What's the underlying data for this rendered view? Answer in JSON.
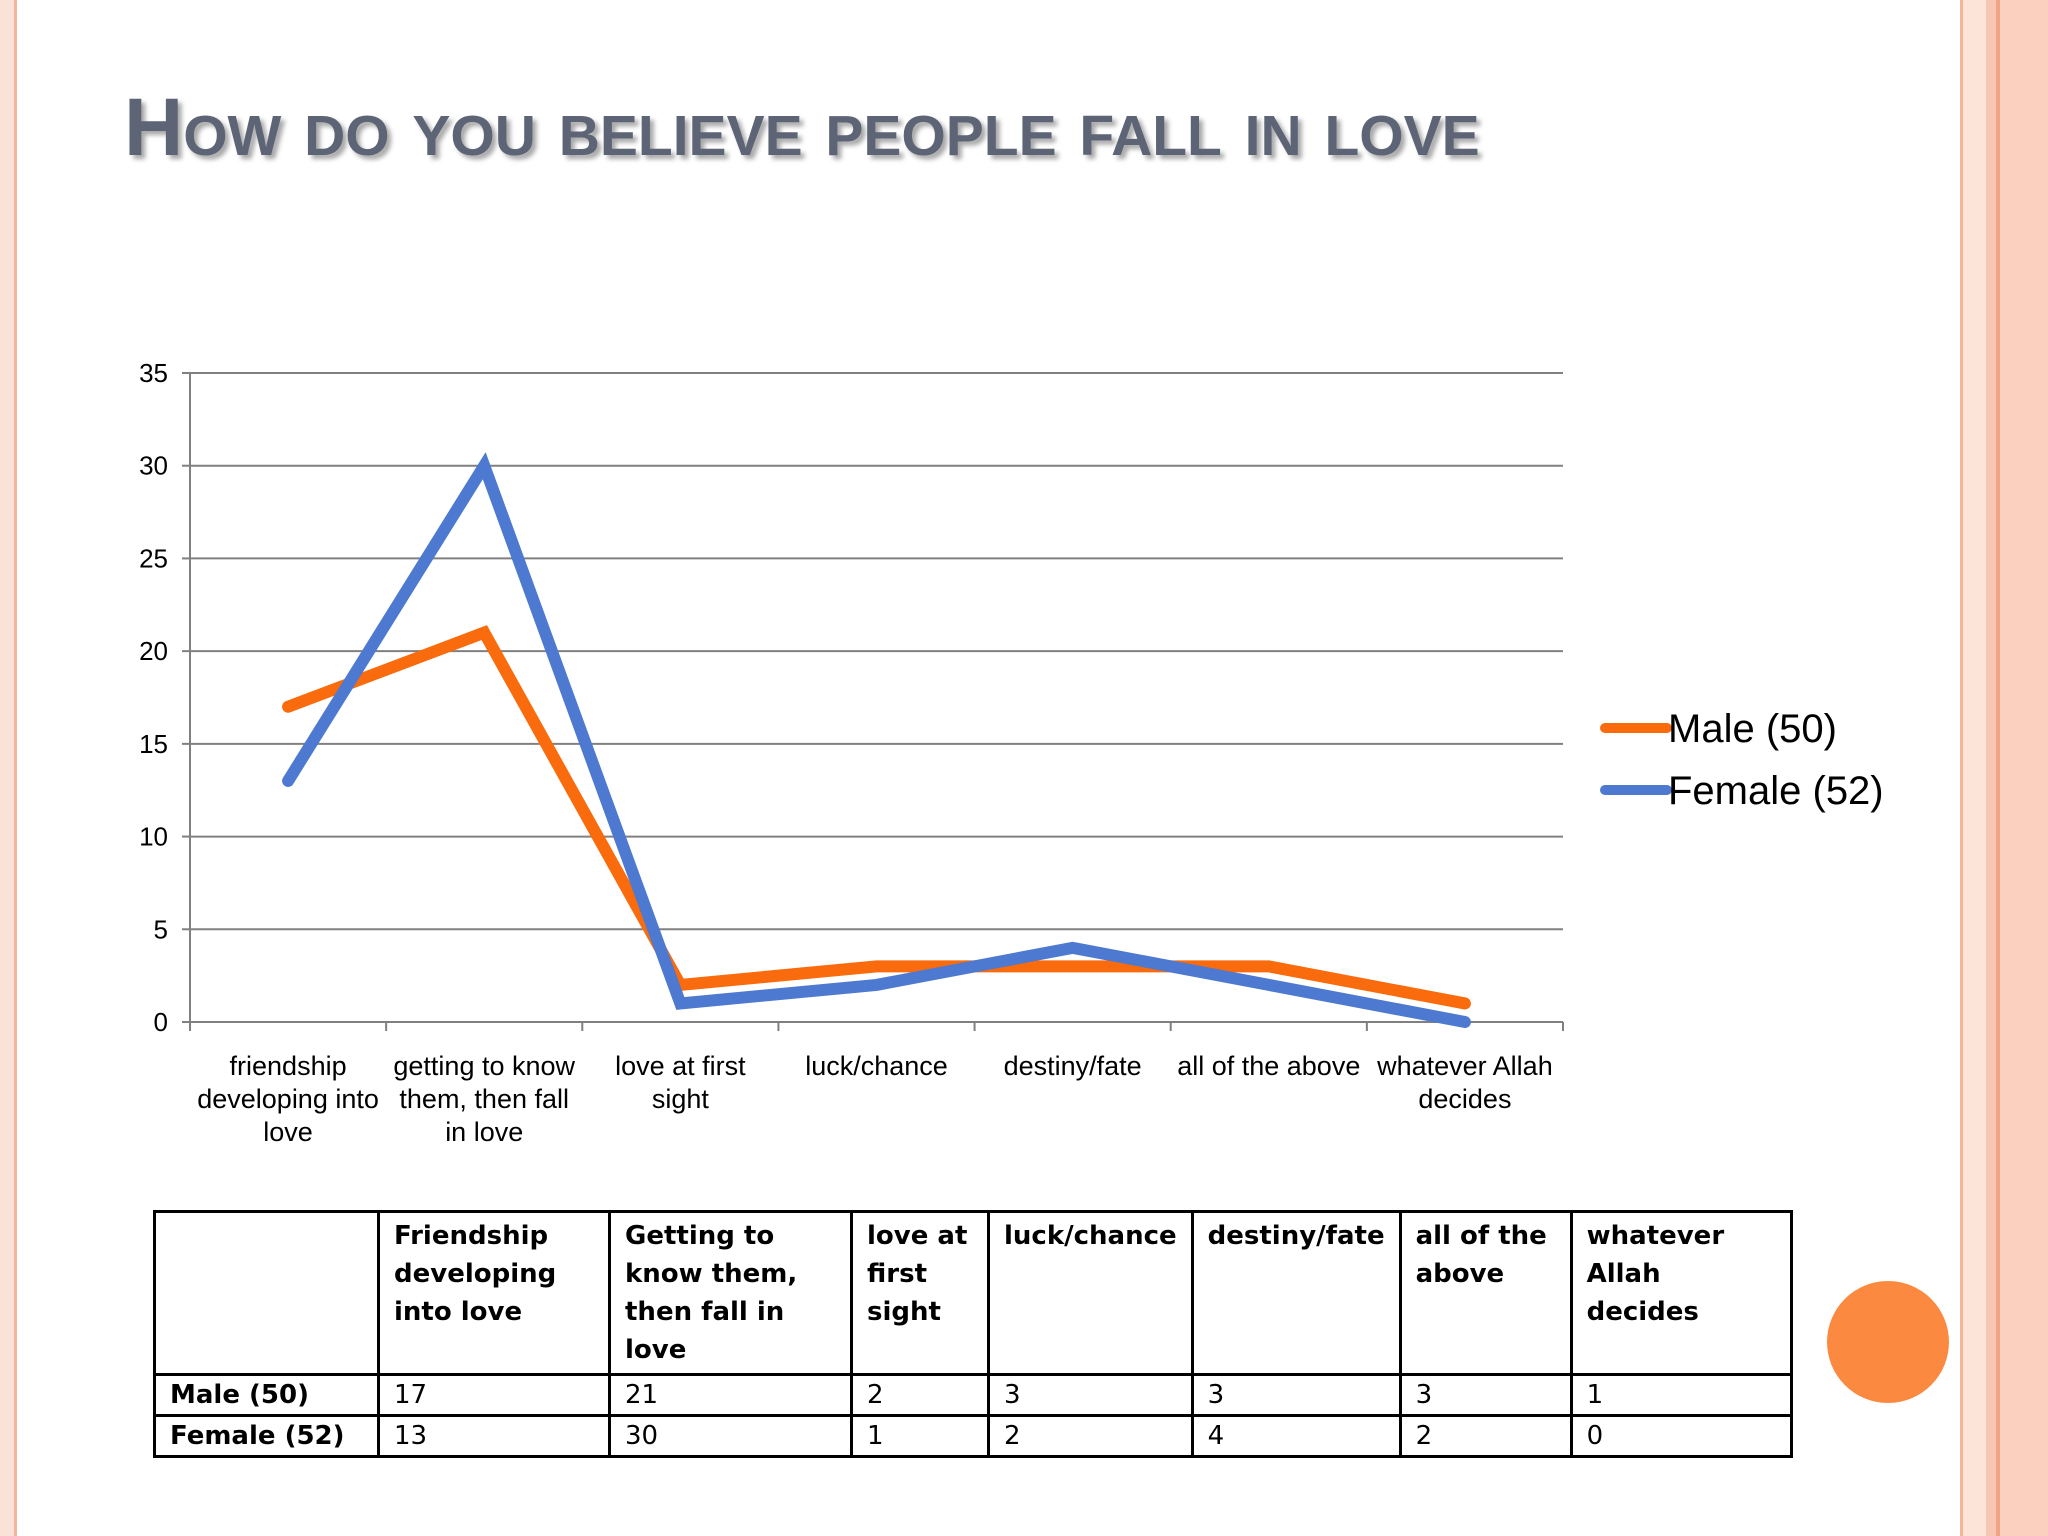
{
  "slide": {
    "title": "How do you believe people fall in love",
    "colors": {
      "accent_circle": "#fb8a40",
      "title": "#5d6475"
    }
  },
  "chart_data": {
    "type": "line",
    "categories": [
      "friendship developing into love",
      "getting to know them, then fall in love",
      "love at first sight",
      "luck/chance",
      "destiny/fate",
      "all of the above",
      "whatever Allah decides"
    ],
    "series": [
      {
        "name": "Male (50)",
        "color": "#f96b0c",
        "values": [
          17,
          21,
          2,
          3,
          3,
          3,
          1
        ]
      },
      {
        "name": "Female (52)",
        "color": "#4d79d1",
        "values": [
          13,
          30,
          1,
          2,
          4,
          2,
          0
        ]
      }
    ],
    "ylim": [
      0,
      35
    ],
    "yticks": [
      0,
      5,
      10,
      15,
      20,
      25,
      30,
      35
    ],
    "grid": true,
    "legend_position": "right"
  },
  "table": {
    "headers": [
      "",
      "Friendship developing into love",
      "Getting to know them, then fall in love",
      "love at first sight",
      "luck/chance",
      "destiny/fate",
      "all of the above",
      "whatever Allah decides"
    ],
    "rows": [
      {
        "label": "Male (50)",
        "cells": [
          "17",
          "21",
          "2",
          "3",
          "3",
          "3",
          "1"
        ]
      },
      {
        "label": "Female (52)",
        "cells": [
          "13",
          "30",
          "1",
          "2",
          "4",
          "2",
          "0"
        ]
      }
    ]
  }
}
